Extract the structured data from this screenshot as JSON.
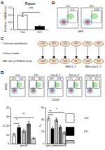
{
  "panel_labels": [
    "A",
    "B",
    "C",
    "D"
  ],
  "chart_data": [
    {
      "type": "bar",
      "title": "Raptor",
      "y_label": "Relative mRNA level",
      "categories": [
        "Ctrl",
        "KO"
      ],
      "values": [
        1.0,
        0.22
      ],
      "errors": [
        0.1,
        0.05
      ],
      "colors": [
        "#ffffff",
        "#000000"
      ],
      "ylim": [
        0,
        1.5
      ],
      "yticks": [
        0,
        0.5,
        {
          "value": 1,
          "label": "1.0"
        },
        1.5
      ],
      "significance": [
        {
          "between": [
            "Ctrl",
            "KO"
          ],
          "text": "***"
        }
      ]
    },
    {
      "type": "bar",
      "x_label": "pro-B",
      "y_label": "%",
      "tick_labels": "y",
      "series": [
        {
          "name": "Ctrl",
          "color": "#ffffff",
          "values": [
            10
          ],
          "errors": [
            1.5
          ]
        },
        {
          "name": "KO",
          "color": "#000000",
          "values": [
            18
          ],
          "errors": [
            2
          ]
        },
        {
          "name": "Ctrl+IL-7",
          "color": "#bdbdbd",
          "values": [
            14
          ],
          "errors": [
            2
          ]
        },
        {
          "name": "KO+IL-7",
          "color": "#616161",
          "values": [
            22
          ],
          "errors": [
            2.5
          ]
        },
        {
          "name": "Ctrl+anti-IL-7",
          "color": "#d9d9d9",
          "values": [
            6
          ],
          "errors": [
            1
          ]
        }
      ],
      "ylim": [
        0,
        40
      ],
      "yticks": [
        0,
        10,
        20,
        30,
        40
      ],
      "significance": [
        {
          "between": [
            "Ctrl",
            "KO"
          ],
          "text": "*"
        },
        {
          "between": [
            "Ctrl",
            "Ctrl+anti-IL-7"
          ],
          "text": "**"
        }
      ]
    },
    {
      "type": "bar",
      "x_label": "pre+immature B",
      "y_label": "%",
      "tick_labels": "y",
      "legend": "right",
      "series": [
        {
          "name": "Ctrl",
          "color": "#ffffff",
          "values": [
            42
          ],
          "errors": [
            3
          ]
        },
        {
          "name": "KO",
          "color": "#000000",
          "values": [
            25
          ],
          "errors": [
            3
          ]
        },
        {
          "name": "Ctrl+IL-7",
          "color": "#bdbdbd",
          "values": [
            40
          ],
          "errors": [
            3
          ]
        },
        {
          "name": "KO+IL-7",
          "color": "#616161",
          "values": [
            28
          ],
          "errors": [
            3
          ]
        },
        {
          "name": "Ctrl+anti-IL-7",
          "color": "#d9d9d9",
          "values": [
            18
          ],
          "errors": [
            2
          ]
        }
      ],
      "ylim": [
        0,
        60
      ],
      "yticks": [
        0,
        20,
        40,
        60
      ],
      "significance": [
        {
          "between": [
            "Ctrl",
            "KO"
          ],
          "text": "**"
        },
        {
          "between": [
            "Ctrl",
            "Ctrl+anti-IL-7"
          ],
          "text": "*"
        }
      ]
    }
  ],
  "flow_B": {
    "x_label": "GFP",
    "plots": [
      {
        "label": "Ctrl",
        "gate_values": [
          0.5
        ]
      },
      {
        "label": "KO",
        "gate_values": [
          61.8
        ]
      }
    ]
  },
  "diagram_C": {
    "rows": [
      {
        "label": "Calvarial osteoblasts",
        "dishes": [
          "Ctrl",
          "KO",
          "Ctrl",
          "KO",
          "Ctrl",
          "KO"
        ]
      },
      {
        "label": "Culture media"
      },
      {
        "label": "BM cells (C57BL/6 mice)",
        "dishes": [
          "Ctrl",
          "KO",
          "Ctrl",
          "KO",
          "Ctrl",
          "KO"
        ],
        "conditions": [
          null,
          "With IL-7",
          "With anti-IL-7"
        ]
      }
    ]
  },
  "flow_D": {
    "x_label": "CD43",
    "y_label": "B220",
    "plots": [
      {
        "label": "Ctrl",
        "gate_values": [
          41.6,
          10.3
        ]
      },
      {
        "label": "KO",
        "gate_values": [
          24.8,
          18.5
        ]
      },
      {
        "label": "Ctrl+IL-7",
        "gate_values": [
          39.7,
          13.9
        ]
      },
      {
        "label": "KO+IL-7",
        "gate_values": [
          27.5,
          21.8
        ]
      },
      {
        "label": "Ctrl+anti-IL-7",
        "gate_values": [
          17.9,
          6.2
        ]
      }
    ]
  }
}
